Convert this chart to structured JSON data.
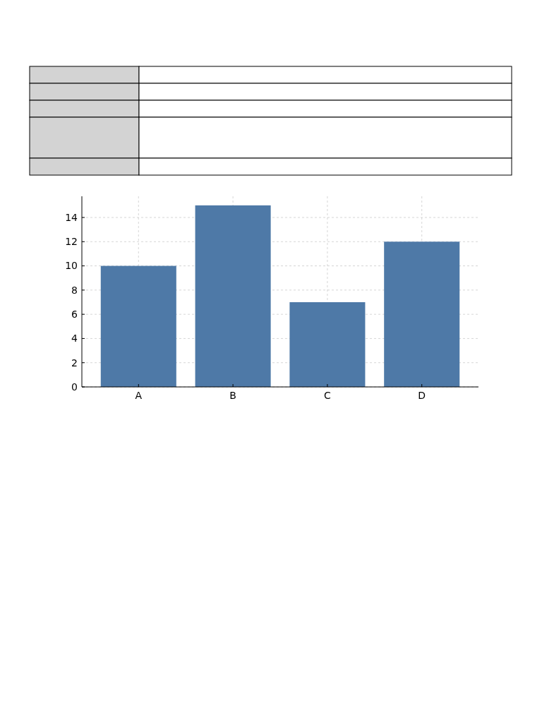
{
  "chart_data": {
    "type": "bar",
    "categories": [
      "A",
      "B",
      "C",
      "D"
    ],
    "values": [
      10,
      15,
      7,
      12
    ],
    "color": "#4e79a7",
    "ylim": [
      0,
      15.75
    ],
    "yticks": [
      0,
      2,
      4,
      6,
      8,
      10,
      12,
      14
    ],
    "grid": true
  }
}
